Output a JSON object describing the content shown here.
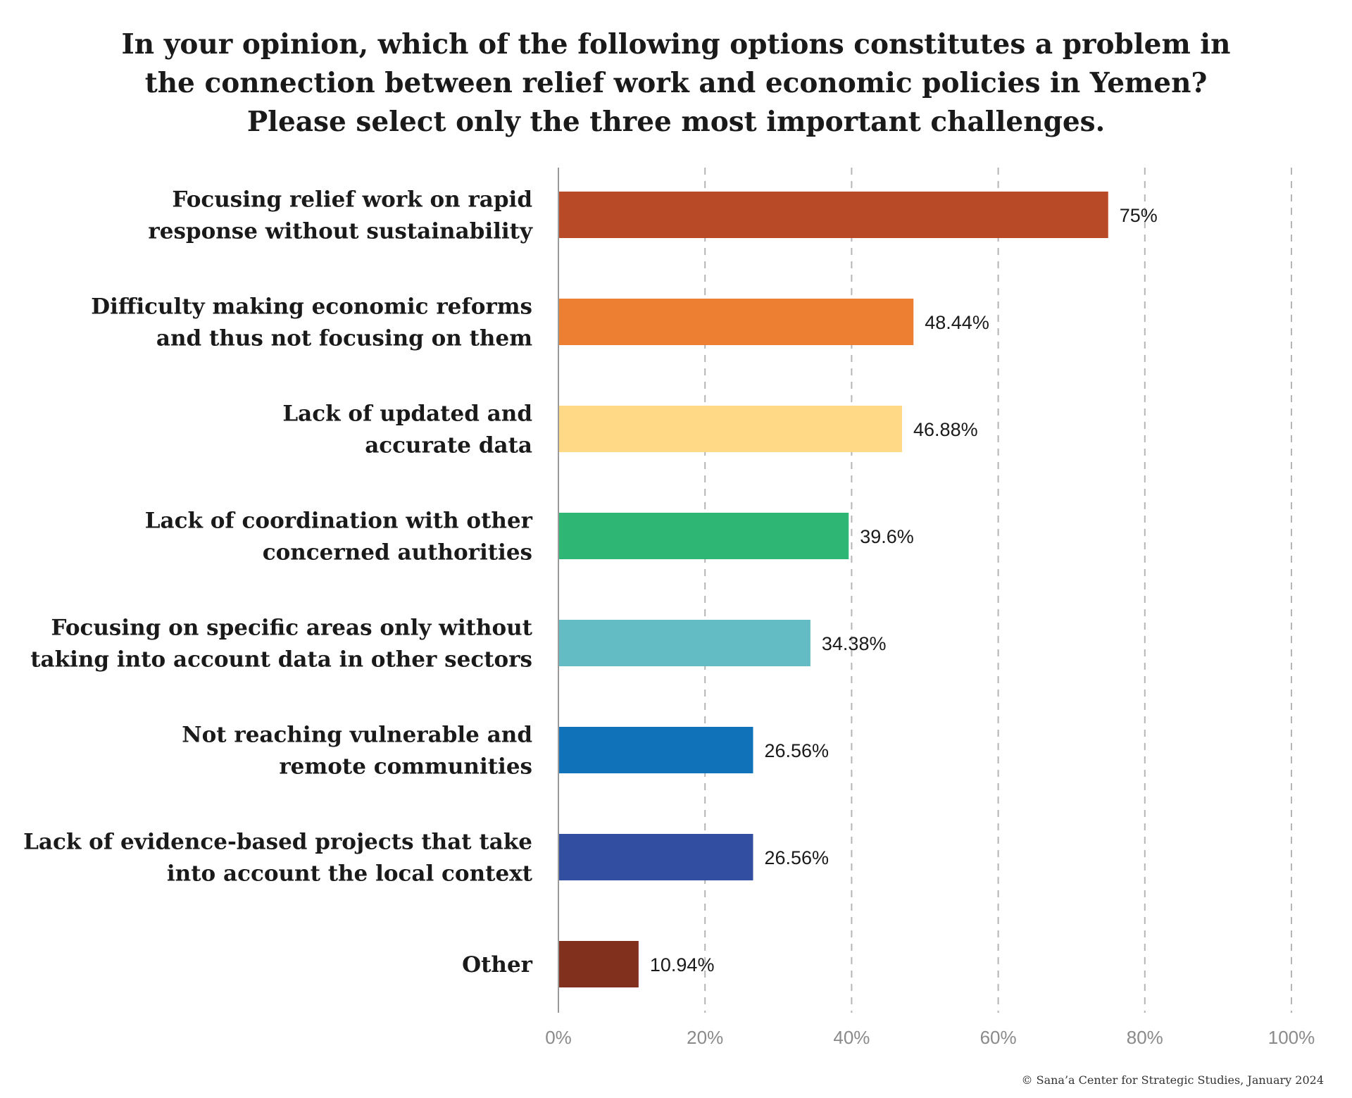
{
  "chart_data": {
    "type": "bar",
    "orientation": "horizontal",
    "title_lines": [
      "In your opinion, which of the following options constitutes a problem in",
      "the connection between relief work and economic policies in Yemen?",
      "Please select only the three most important challenges."
    ],
    "categories": [
      [
        "Focusing relief work on rapid",
        "response without sustainability"
      ],
      [
        "Difficulty making economic reforms",
        "and thus not focusing on them"
      ],
      [
        "Lack of updated and",
        "accurate data"
      ],
      [
        "Lack of coordination with other",
        "concerned authorities"
      ],
      [
        "Focusing on specific areas only without",
        "taking into account data in other sectors"
      ],
      [
        "Not reaching vulnerable and",
        "remote communities"
      ],
      [
        "Lack of evidence-based projects that take",
        "into account the local context"
      ],
      [
        "Other"
      ]
    ],
    "values": [
      75,
      48.44,
      46.88,
      39.6,
      34.38,
      26.56,
      26.56,
      10.94
    ],
    "value_labels": [
      "75%",
      "48.44%",
      "46.88%",
      "39.6%",
      "34.38%",
      "26.56%",
      "26.56%",
      "10.94%"
    ],
    "colors": [
      "#b94a27",
      "#ed7f32",
      "#ffd985",
      "#2db674",
      "#63bbc4",
      "#1073ba",
      "#324ea0",
      "#82301e"
    ],
    "xlim": [
      0,
      100
    ],
    "xticks": [
      0,
      20,
      40,
      60,
      80,
      100
    ],
    "xtick_labels": [
      "0%",
      "20%",
      "40%",
      "60%",
      "80%",
      "100%"
    ],
    "grid": "vertical-dashed",
    "legend": "none",
    "credit": "© Sana’a Center for Strategic Studies, January 2024"
  }
}
